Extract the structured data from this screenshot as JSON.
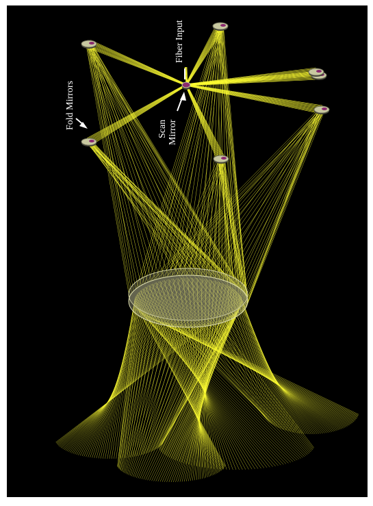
{
  "figure": {
    "background_color": "#000000",
    "ray_color": "#ffff33",
    "mirror_color": "#c8c8a0",
    "mirror_coating_color": "#8a2a6e",
    "label_color": "#ffffff"
  },
  "labels": {
    "fiber_input": "Fiber Input",
    "scan_mirror_line1": "Scan",
    "scan_mirror_line2": "Mirror",
    "fold_mirrors": "Fold Mirrors"
  },
  "components": {
    "fold_mirror_count": 7,
    "scan_mirror_count": 1,
    "fiber_input_count": 1,
    "main_optic_count": 1
  }
}
